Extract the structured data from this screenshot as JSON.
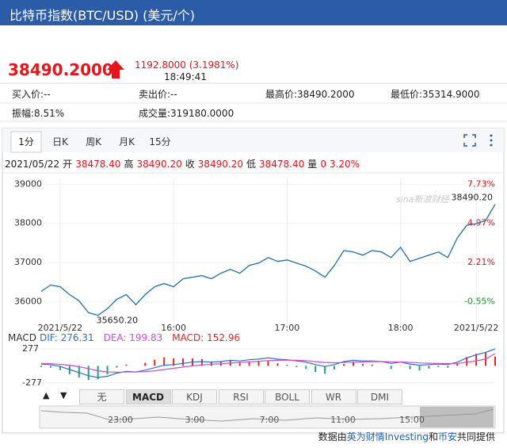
{
  "header": {
    "title": "比特币指数(BTC/USD) (美元/个)"
  },
  "quote": {
    "price": "38490.2000",
    "change": "1192.8000 (3.1981%)",
    "time": "18:49:41"
  },
  "info": {
    "rows": [
      [
        "买入价:--",
        "卖出价:--",
        "最高价:38490.2000",
        "最低价:35314.9000"
      ],
      [
        "振幅:8.51%",
        "成交量:319180.0000"
      ]
    ]
  },
  "tabs": [
    "1分",
    "日K",
    "周K",
    "月K",
    "15分"
  ],
  "ohlc": {
    "date": "2021/05/22",
    "items": [
      [
        "开",
        "38478.40"
      ],
      [
        "高",
        "38490.20"
      ],
      [
        "收",
        "38490.20"
      ],
      [
        "低",
        "38478.40"
      ],
      [
        "量",
        "0"
      ]
    ],
    "change": "3.20%"
  },
  "chart_data": [
    {
      "type": "line",
      "color": "#1f6fb5",
      "watermark": "sina新浪财经",
      "x": [
        "14:50",
        "14:55",
        "15:00",
        "15:05",
        "15:10",
        "15:15",
        "15:20",
        "15:25",
        "15:30",
        "15:35",
        "15:40",
        "15:45",
        "15:50",
        "15:55",
        "16:00",
        "16:05",
        "16:10",
        "16:15",
        "16:20",
        "16:25",
        "16:30",
        "16:35",
        "16:40",
        "16:45",
        "16:50",
        "16:55",
        "17:00",
        "17:05",
        "17:10",
        "17:15",
        "17:20",
        "17:25",
        "17:30",
        "17:35",
        "17:40",
        "17:45",
        "17:50",
        "17:55",
        "18:00",
        "18:05",
        "18:10",
        "18:15",
        "18:20",
        "18:25",
        "18:30",
        "18:35",
        "18:40",
        "18:45",
        "18:50"
      ],
      "values": [
        36262,
        36423,
        36382,
        36181,
        36020,
        35718,
        35650.2,
        35819,
        36060,
        36181,
        35920,
        36181,
        36382,
        36463,
        36382,
        36584,
        36624,
        36664,
        36584,
        36725,
        36825,
        36725,
        36926,
        36986,
        37127,
        37027,
        37067,
        36986,
        36906,
        36785,
        36624,
        36926,
        37308,
        37268,
        37188,
        37308,
        37268,
        37127,
        37389,
        37027,
        37107,
        37188,
        37268,
        37127,
        37630,
        37952,
        37992,
        38073,
        38490.2
      ],
      "ylim": [
        35400,
        39150
      ],
      "yticks": [
        36000,
        37000,
        38000,
        39000
      ],
      "y2lim": [
        -2.206,
        8.144
      ],
      "y2ticks": [
        {
          "value": 7.73,
          "label": "7.73%"
        },
        {
          "value": 4.97,
          "label": "4.97%"
        },
        {
          "value": 2.21,
          "label": "2.21%"
        },
        {
          "value": -0.55,
          "label": "-0.55%"
        }
      ],
      "y2tick_colors": [
        "#e4161c",
        "#e4161c",
        "#e4161c",
        "#1a9a2c"
      ],
      "xticks": [
        {
          "value": "15:00",
          "label": "2021/5/22"
        },
        "16:00",
        "17:00",
        "18:00",
        {
          "value": "18:40",
          "label": "2021/5/22"
        }
      ],
      "annotations": [
        {
          "label": "38490.20",
          "x": "18:50",
          "value": 38490.2
        },
        {
          "label": "35650.20",
          "x": "15:20",
          "value": 35650.2
        }
      ],
      "grid": true
    },
    {
      "type": "macd",
      "title": "MACD",
      "ylim": [
        -370,
        380
      ],
      "yticks": [
        277,
        -277
      ],
      "series": [
        {
          "legend": "DIF: 276.31",
          "color": "#2b6fd6",
          "values": [
            30,
            20,
            -10,
            -60,
            -110,
            -160,
            -190,
            -170,
            -120,
            -90,
            -100,
            -70,
            -30,
            10,
            20,
            40,
            60,
            70,
            60,
            70,
            90,
            80,
            100,
            110,
            130,
            110,
            100,
            80,
            60,
            20,
            -10,
            20,
            70,
            90,
            80,
            80,
            70,
            40,
            60,
            30,
            10,
            20,
            30,
            20,
            60,
            130,
            180,
            220,
            276.31
          ]
        },
        {
          "legend": "DEA: 199.83",
          "color": "#c94fd8",
          "values": [
            40,
            35,
            25,
            10,
            -15,
            -45,
            -80,
            -100,
            -105,
            -100,
            -100,
            -95,
            -80,
            -60,
            -40,
            -20,
            0,
            15,
            25,
            35,
            45,
            55,
            65,
            75,
            85,
            90,
            92,
            90,
            85,
            70,
            55,
            50,
            55,
            60,
            65,
            70,
            70,
            65,
            63,
            57,
            48,
            42,
            40,
            36,
            40,
            58,
            82,
            110,
            199.83
          ]
        },
        {
          "legend": "MACD: 152.96",
          "color": "#e0291f",
          "down_color": "#1aa86a",
          "values": [
            -20,
            -30,
            -70,
            -140,
            -190,
            -230,
            -220,
            -140,
            -30,
            20,
            0,
            50,
            100,
            140,
            120,
            120,
            120,
            110,
            70,
            70,
            90,
            50,
            70,
            70,
            90,
            40,
            16,
            -20,
            -50,
            -100,
            -130,
            -60,
            30,
            60,
            30,
            20,
            0,
            -50,
            -6,
            -54,
            -76,
            -44,
            -20,
            -32,
            40,
            144,
            196,
            220,
            152.96
          ]
        }
      ]
    }
  ],
  "indicator": {
    "arrows": [
      "▲",
      "▼"
    ],
    "tabs": [
      "无",
      "MACD",
      "KDJ",
      "RSI",
      "BOLL",
      "WR",
      "DMI"
    ]
  },
  "navigator": {
    "labels": [
      "23:00",
      "3:00",
      "7:00",
      "11:00",
      "15:00"
    ]
  },
  "footer": [
    "数据由",
    "英为财情Investing",
    "和",
    "币安",
    "共同提供"
  ]
}
